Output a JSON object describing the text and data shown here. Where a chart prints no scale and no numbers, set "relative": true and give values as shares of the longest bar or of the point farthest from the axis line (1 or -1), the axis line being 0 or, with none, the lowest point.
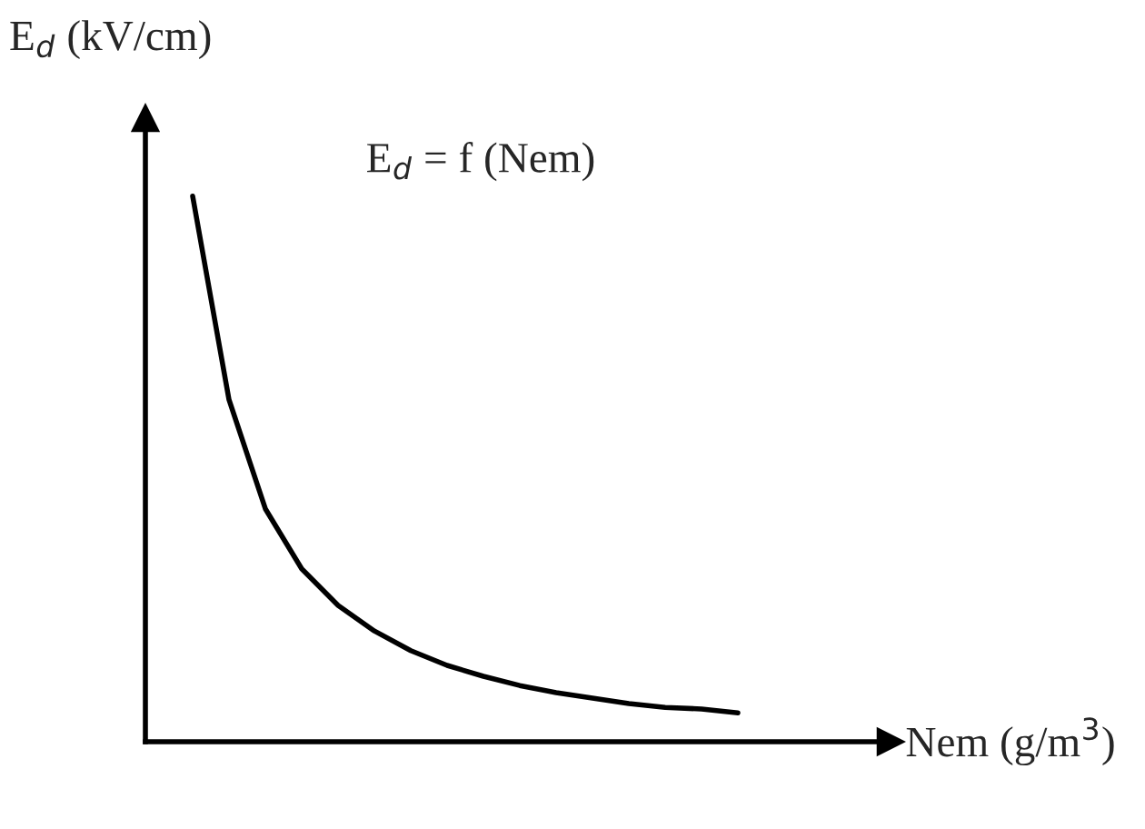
{
  "chart_data": {
    "type": "line",
    "relative": true,
    "title": "E$_{d}$ = f (Nem)",
    "xlabel": "Nem (g/m$^{3}$)",
    "ylabel": "E$_{d}$ (kV/cm)",
    "categories": [
      null,
      null,
      null,
      null,
      null,
      null,
      null,
      null,
      null,
      null,
      null,
      null,
      null,
      null,
      null,
      null
    ],
    "series": [
      {
        "color": "#000000",
        "values": [
          1,
          0.627,
          0.427,
          0.317,
          0.25,
          0.203,
          0.167,
          0.14,
          0.12,
          0.103,
          0.09,
          0.08,
          0.07,
          0.063,
          0.06,
          0.053
        ]
      }
    ],
    "legend": false,
    "marker": "none",
    "line_style": "solid"
  }
}
